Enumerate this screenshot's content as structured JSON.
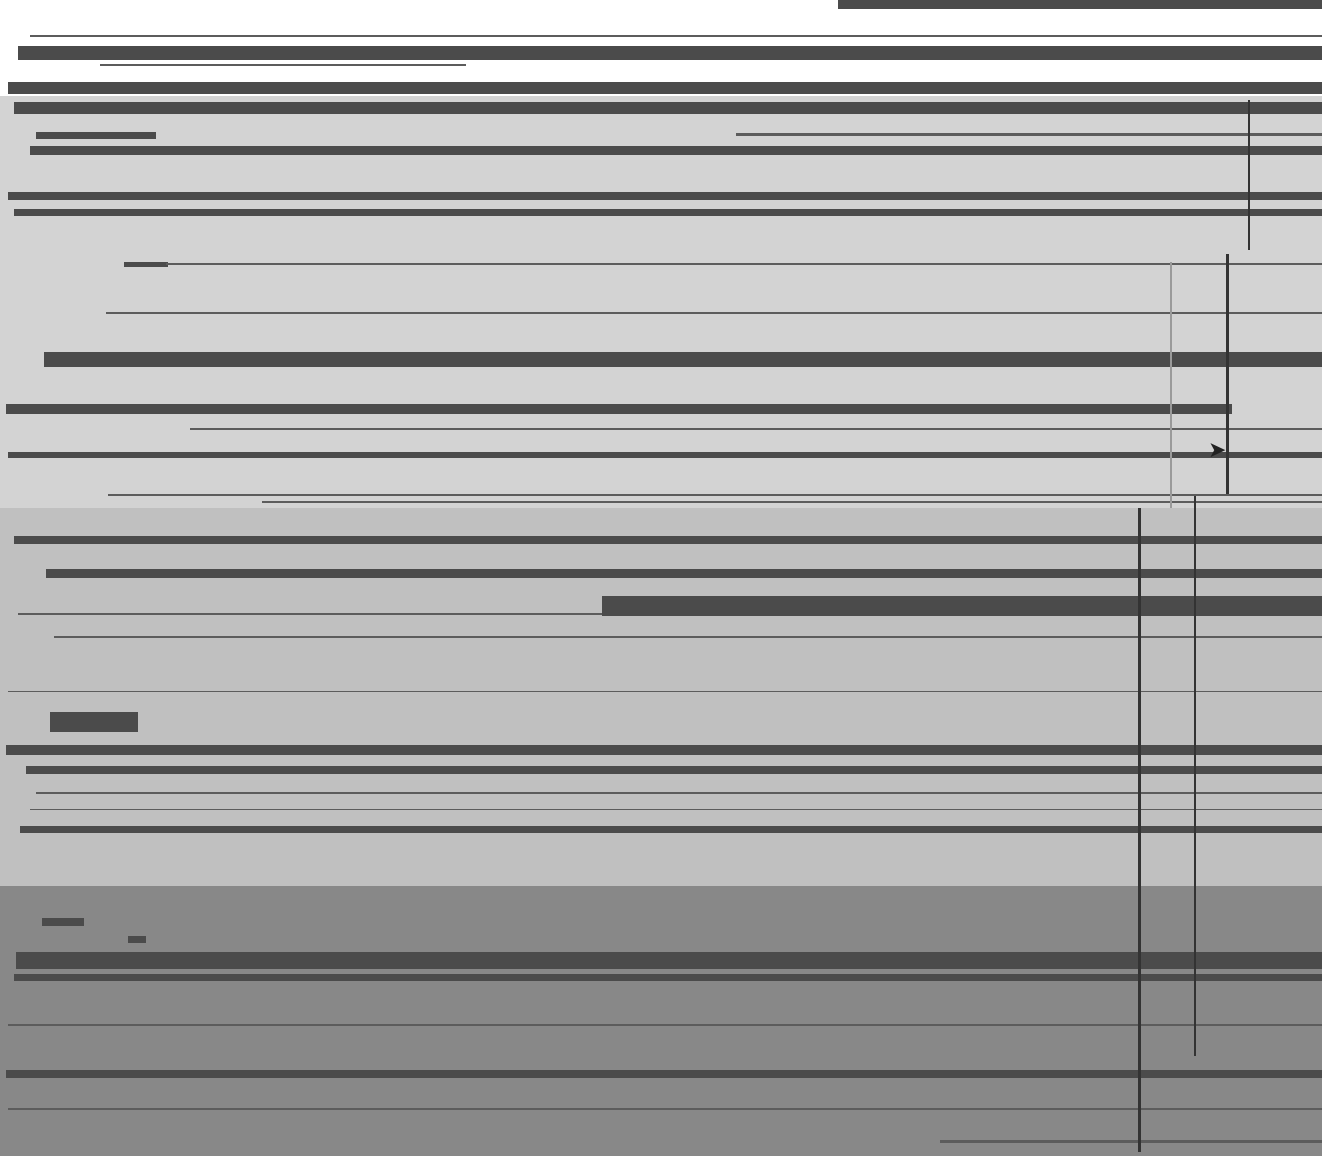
{
  "window": {
    "title": "",
    "status_text": ""
  },
  "colors": {
    "top_band": "#ffffff",
    "upper_band": "#d3d3d3",
    "middle_band": "#c0c0c0",
    "lower_band": "#888888",
    "bar_dark": "#4b4b4b",
    "line_thin": "#5c5c5c",
    "divider": "#333333"
  },
  "icons": {
    "pointer": "pointer-icon"
  },
  "rows": [
    {
      "label": ""
    },
    {
      "label": ""
    },
    {
      "label": ""
    },
    {
      "label": ""
    },
    {
      "label": ""
    },
    {
      "label": ""
    },
    {
      "label": ""
    },
    {
      "label": ""
    }
  ]
}
